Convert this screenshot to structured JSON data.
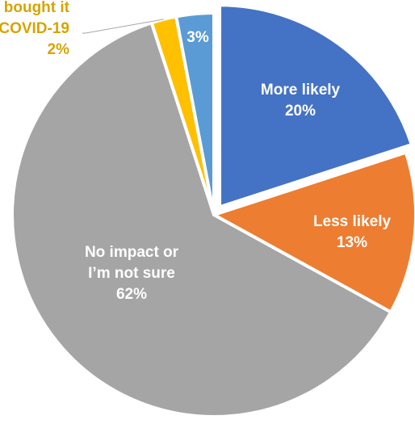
{
  "chart_data": {
    "type": "pie",
    "title": "",
    "start_angle_deg": 0,
    "direction": "clockwise",
    "slices": [
      {
        "label_lines": [
          "More likely",
          "20%"
        ],
        "value": 20,
        "color": "#4472C4",
        "label_color": "#ffffff",
        "exploded": true
      },
      {
        "label_lines": [
          "Less likely",
          "13%"
        ],
        "value": 13,
        "color": "#ED7D31",
        "label_color": "#ffffff",
        "exploded": false
      },
      {
        "label_lines": [
          "No impact or",
          "I’m not sure",
          "62%"
        ],
        "value": 62,
        "color": "#A5A5A5",
        "label_color": "#ffffff",
        "exploded": false
      },
      {
        "label_lines": [
          "bought it",
          "COVID-19",
          "2%"
        ],
        "value": 2,
        "color": "#FFC000",
        "label_color": "#D6A400",
        "exploded": false,
        "leader_line": true
      },
      {
        "label_lines": [
          "3%"
        ],
        "value": 3,
        "color": "#5B9BD5",
        "label_color": "#ffffff",
        "exploded": false
      }
    ]
  }
}
